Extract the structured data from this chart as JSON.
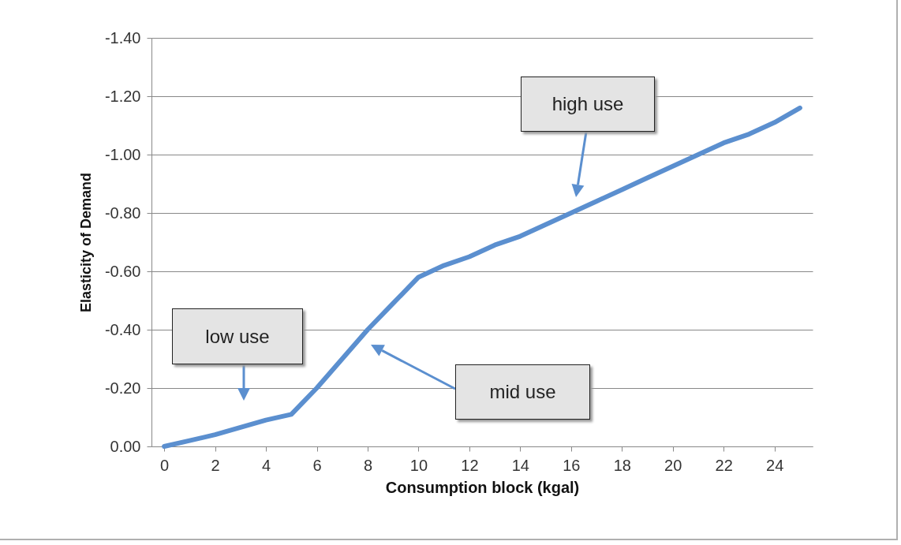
{
  "chart_data": {
    "type": "line",
    "xlabel": "Consumption block (kgal)",
    "ylabel": "Elasticity of Demand",
    "x": [
      0,
      1,
      2,
      3,
      4,
      5,
      6,
      7,
      8,
      9,
      10,
      11,
      12,
      13,
      14,
      15,
      16,
      17,
      18,
      19,
      20,
      21,
      22,
      23,
      24,
      25
    ],
    "xlim": [
      -0.5,
      25.5
    ],
    "xticks": [
      0,
      2,
      4,
      6,
      8,
      10,
      12,
      14,
      16,
      18,
      20,
      22,
      24
    ],
    "series": [
      {
        "color": "#5b8fcf",
        "values": [
          0,
          -0.02,
          -0.04,
          -0.065,
          -0.09,
          -0.11,
          -0.2,
          -0.3,
          -0.4,
          -0.49,
          -0.58,
          -0.62,
          -0.65,
          -0.69,
          -0.72,
          -0.76,
          -0.8,
          -0.84,
          -0.88,
          -0.92,
          -0.96,
          -1.0,
          -1.04,
          -1.07,
          -1.11,
          -1.16
        ]
      }
    ],
    "ylim": [
      0,
      -1.4
    ],
    "yticks": [
      {
        "value": 0,
        "label": "0.00"
      },
      {
        "value": -0.2,
        "label": "-0.20"
      },
      {
        "value": -0.4,
        "label": "-0.40"
      },
      {
        "value": -0.6,
        "label": "-0.60"
      },
      {
        "value": -0.8,
        "label": "-0.80"
      },
      {
        "value": -1.0,
        "label": "-1.00"
      },
      {
        "value": -1.2,
        "label": "-1.20"
      },
      {
        "value": -1.4,
        "label": "-1.40"
      }
    ],
    "grid": "y",
    "legend": false,
    "marker": "none",
    "line_style": "solid",
    "annotations": [
      "low use",
      "mid use",
      "high use"
    ]
  }
}
